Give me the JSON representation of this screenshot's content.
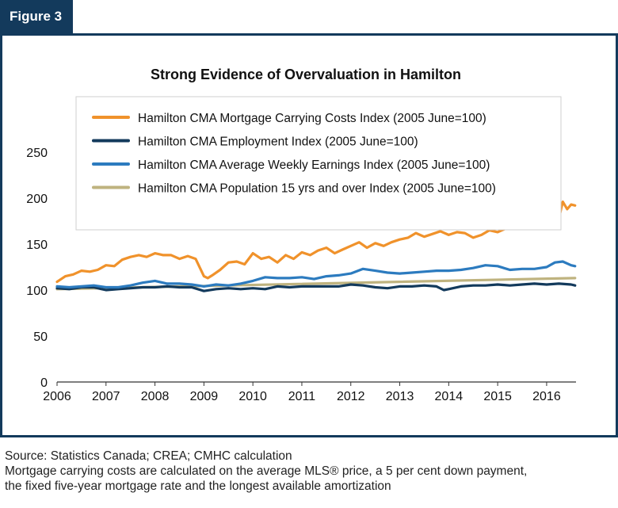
{
  "figure_label": "Figure 3",
  "footer": {
    "source": "Source: Statistics Canada; CREA; CMHC calculation",
    "note_line1": "Mortgage carrying costs are calculated on the average MLS® price, a 5 per cent down payment,",
    "note_line2": "the fixed five-year mortgage rate and the longest available amortization"
  },
  "chart_data": {
    "type": "line",
    "title": "Strong Evidence of Overvaluation in Hamilton",
    "xlabel": "",
    "ylabel": "",
    "xlim": [
      2006,
      2016.6
    ],
    "ylim": [
      0,
      250
    ],
    "yticks": [
      0,
      50,
      100,
      150,
      200,
      250
    ],
    "xticks": [
      "2006",
      "2007",
      "2008",
      "2009",
      "2010",
      "2011",
      "2012",
      "2013",
      "2014",
      "2015",
      "2016"
    ],
    "grid": false,
    "legend_position": "top-right",
    "series": [
      {
        "name": "Hamilton CMA Mortgage Carrying Costs Index (2005 June=100)",
        "color": "#f0922b",
        "x": [
          2006.0,
          2006.17,
          2006.33,
          2006.5,
          2006.67,
          2006.83,
          2007.0,
          2007.17,
          2007.33,
          2007.5,
          2007.67,
          2007.83,
          2008.0,
          2008.17,
          2008.33,
          2008.5,
          2008.67,
          2008.83,
          2009.0,
          2009.08,
          2009.17,
          2009.33,
          2009.5,
          2009.67,
          2009.83,
          2010.0,
          2010.17,
          2010.33,
          2010.5,
          2010.67,
          2010.83,
          2011.0,
          2011.17,
          2011.33,
          2011.5,
          2011.67,
          2011.83,
          2012.0,
          2012.17,
          2012.33,
          2012.5,
          2012.67,
          2012.83,
          2013.0,
          2013.17,
          2013.33,
          2013.5,
          2013.67,
          2013.83,
          2014.0,
          2014.17,
          2014.33,
          2014.5,
          2014.67,
          2014.83,
          2015.0,
          2015.17,
          2015.33,
          2015.5,
          2015.67,
          2015.83,
          2016.0,
          2016.17,
          2016.25,
          2016.33,
          2016.42,
          2016.5,
          2016.58
        ],
        "values": [
          109,
          115,
          117,
          121,
          120,
          122,
          127,
          126,
          133,
          136,
          138,
          136,
          140,
          138,
          138,
          134,
          137,
          134,
          115,
          113,
          116,
          122,
          130,
          131,
          128,
          140,
          134,
          136,
          130,
          138,
          134,
          141,
          138,
          143,
          146,
          140,
          144,
          148,
          152,
          146,
          151,
          148,
          152,
          155,
          157,
          162,
          158,
          161,
          164,
          160,
          163,
          162,
          157,
          160,
          165,
          163,
          167,
          168,
          168,
          170,
          173,
          176,
          175,
          178,
          196,
          188,
          193,
          192
        ]
      },
      {
        "name": "Hamilton CMA Employment Index (2005 June=100)",
        "color": "#133a5c",
        "x": [
          2006.0,
          2006.25,
          2006.5,
          2006.75,
          2007.0,
          2007.25,
          2007.5,
          2007.75,
          2008.0,
          2008.25,
          2008.5,
          2008.75,
          2009.0,
          2009.25,
          2009.5,
          2009.75,
          2010.0,
          2010.25,
          2010.5,
          2010.75,
          2011.0,
          2011.25,
          2011.5,
          2011.75,
          2012.0,
          2012.25,
          2012.5,
          2012.75,
          2013.0,
          2013.25,
          2013.5,
          2013.75,
          2013.9,
          2014.0,
          2014.25,
          2014.5,
          2014.75,
          2015.0,
          2015.25,
          2015.5,
          2015.75,
          2016.0,
          2016.25,
          2016.5,
          2016.58
        ],
        "values": [
          102,
          101,
          103,
          103,
          100,
          101,
          102,
          103,
          103,
          104,
          103,
          103,
          99,
          101,
          102,
          101,
          102,
          101,
          104,
          103,
          104,
          104,
          104,
          104,
          106,
          105,
          103,
          102,
          104,
          104,
          105,
          104,
          100,
          101,
          104,
          105,
          105,
          106,
          105,
          106,
          107,
          106,
          107,
          106,
          105
        ]
      },
      {
        "name": "Hamilton CMA Average Weekly Earnings Index (2005 June=100)",
        "color": "#2c7bbf",
        "x": [
          2006.0,
          2006.25,
          2006.5,
          2006.75,
          2007.0,
          2007.25,
          2007.5,
          2007.75,
          2008.0,
          2008.25,
          2008.5,
          2008.75,
          2009.0,
          2009.25,
          2009.5,
          2009.75,
          2010.0,
          2010.25,
          2010.5,
          2010.75,
          2011.0,
          2011.25,
          2011.5,
          2011.75,
          2012.0,
          2012.25,
          2012.5,
          2012.75,
          2013.0,
          2013.25,
          2013.5,
          2013.75,
          2014.0,
          2014.25,
          2014.5,
          2014.75,
          2015.0,
          2015.25,
          2015.5,
          2015.75,
          2016.0,
          2016.17,
          2016.33,
          2016.5,
          2016.58
        ],
        "values": [
          104,
          103,
          104,
          105,
          103,
          103,
          105,
          108,
          110,
          107,
          107,
          106,
          104,
          106,
          105,
          107,
          110,
          114,
          113,
          113,
          114,
          112,
          115,
          116,
          118,
          123,
          121,
          119,
          118,
          119,
          120,
          121,
          121,
          122,
          124,
          127,
          126,
          122,
          123,
          123,
          125,
          130,
          131,
          127,
          126
        ]
      },
      {
        "name": "Hamilton CMA Population 15 yrs and over Index (2005 June=100)",
        "color": "#bfb37f",
        "x": [
          2006.0,
          2016.58
        ],
        "values": [
          101,
          113
        ]
      }
    ]
  }
}
